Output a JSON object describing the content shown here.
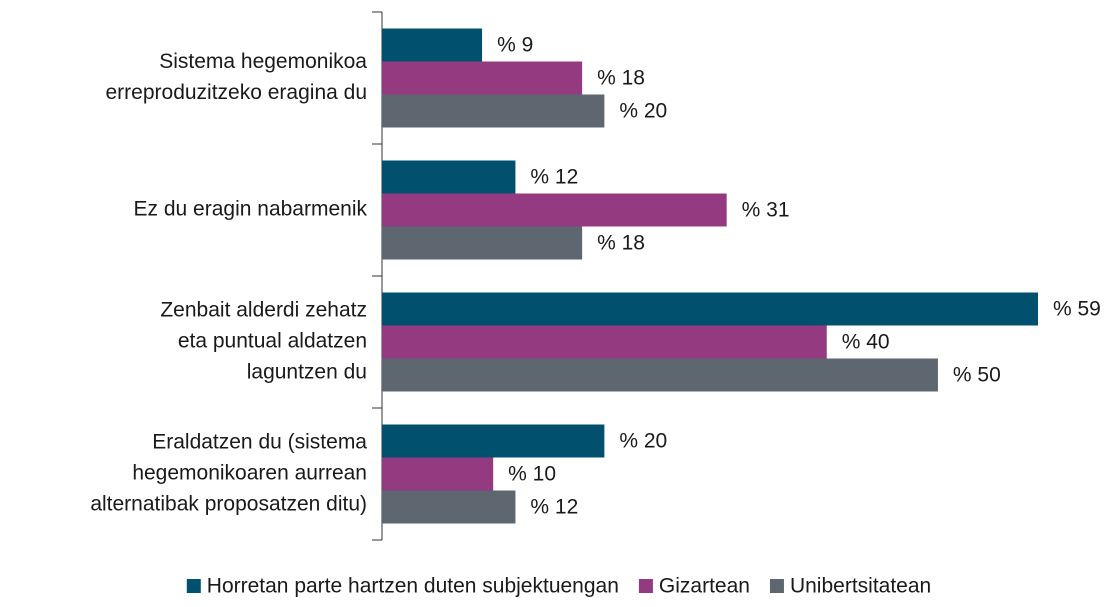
{
  "chart_data": {
    "type": "bar",
    "orientation": "horizontal",
    "categories": [
      [
        "Sistema hegemonikoa",
        "erreproduzitzeko eragina du"
      ],
      [
        "Ez du eragin nabarmenik"
      ],
      [
        "Zenbait alderdi zehatz",
        "eta puntual aldatzen",
        "laguntzen du"
      ],
      [
        "Eraldatzen du (sistema",
        "hegemonikoaren aurrean",
        "alternatibak proposatzen ditu)"
      ]
    ],
    "series": [
      {
        "name": "Horretan parte hartzen duten subjektuengan",
        "color": "#00506e",
        "values": [
          9,
          12,
          59,
          20
        ],
        "value_labels": [
          "% 9",
          "% 12",
          "% 59",
          "% 20"
        ]
      },
      {
        "name": "Gizartean",
        "color": "#933a80",
        "values": [
          18,
          31,
          40,
          10
        ],
        "value_labels": [
          "% 18",
          "% 31",
          "% 40",
          "% 10"
        ]
      },
      {
        "name": "Unibertsitatean",
        "color": "#5e6670",
        "values": [
          20,
          18,
          50,
          12
        ],
        "value_labels": [
          "% 20",
          "% 18",
          "% 50",
          "% 12"
        ]
      }
    ],
    "legend": "bottom"
  }
}
